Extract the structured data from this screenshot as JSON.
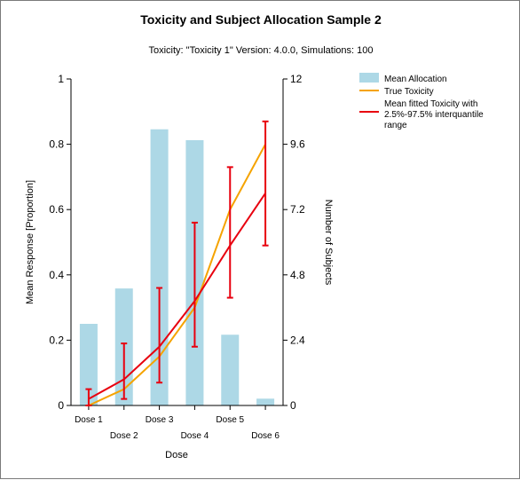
{
  "chart_data": {
    "type": "bar+line",
    "title": "Toxicity and Subject Allocation Sample 2",
    "subtitle": "Toxicity: \"Toxicity 1\" Version: 4.0.0, Simulations: 100",
    "xlabel": "Dose",
    "ylabel_left": "Mean Response [Proportion]",
    "ylabel_right": "Number of Subjects",
    "categories": [
      "Dose 1",
      "Dose 2",
      "Dose 3",
      "Dose 4",
      "Dose 5",
      "Dose 6"
    ],
    "ylim_left": [
      0,
      1
    ],
    "ylim_right": [
      0,
      12
    ],
    "yticks_left": [
      "0",
      "0.2",
      "0.4",
      "0.6",
      "0.8",
      "1"
    ],
    "yticks_right": [
      "0",
      "2.4",
      "4.8",
      "7.2",
      "9.6",
      "12"
    ],
    "grid": false,
    "legend_position": "top-right",
    "series": [
      {
        "name": "Mean Allocation",
        "kind": "bar",
        "axis": "right",
        "color": "#add8e6",
        "values": [
          3.0,
          4.3,
          10.15,
          9.75,
          2.6,
          0.25
        ]
      },
      {
        "name": "True Toxicity",
        "kind": "line",
        "axis": "left",
        "color": "#f5a300",
        "values": [
          0.0,
          0.05,
          0.15,
          0.3,
          0.6,
          0.8
        ]
      },
      {
        "name": "Mean fitted Toxicity with 2.5%-97.5% interquantile range",
        "kind": "line_errorbar",
        "axis": "left",
        "color": "#e8000f",
        "values": [
          0.02,
          0.08,
          0.18,
          0.32,
          0.49,
          0.65
        ],
        "lower": [
          0.0,
          0.02,
          0.07,
          0.18,
          0.33,
          0.49
        ],
        "upper": [
          0.05,
          0.19,
          0.36,
          0.56,
          0.73,
          0.87
        ]
      }
    ]
  },
  "legend": {
    "items": [
      {
        "label_lines": [
          "Mean Allocation"
        ]
      },
      {
        "label_lines": [
          "True Toxicity"
        ]
      },
      {
        "label_lines": [
          "Mean fitted Toxicity with",
          "2.5%-97.5% interquantile",
          "range"
        ]
      }
    ]
  }
}
